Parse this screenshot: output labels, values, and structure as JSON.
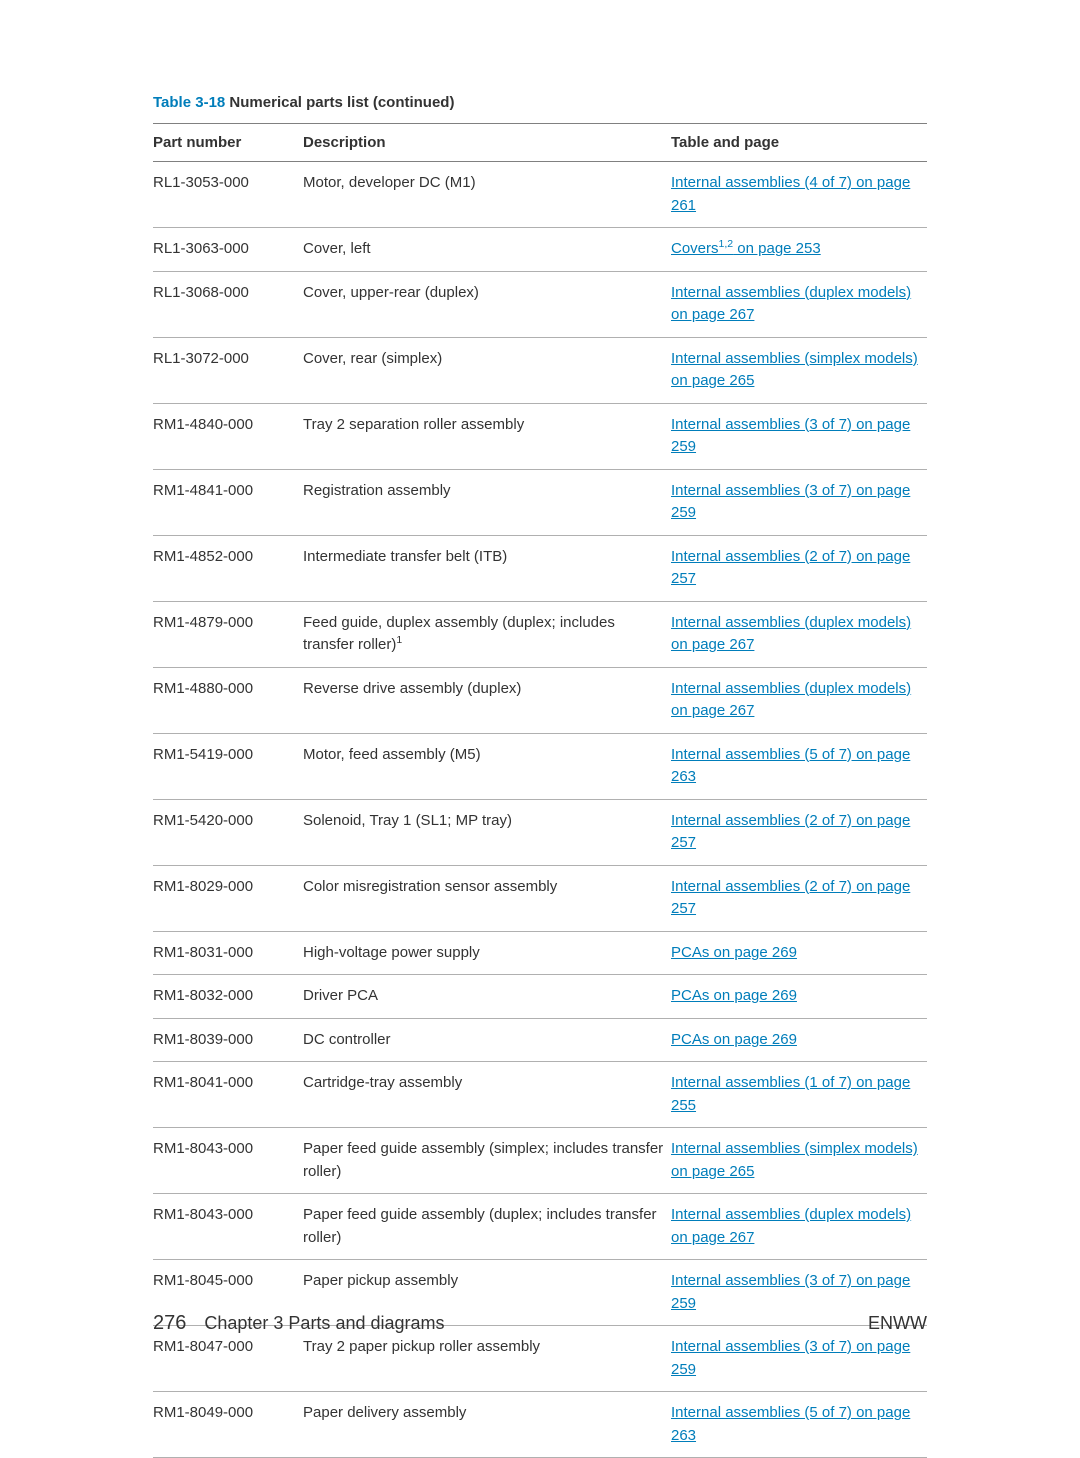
{
  "caption": {
    "label": "Table 3-18",
    "title": " Numerical parts list (continued)"
  },
  "columns": {
    "part": "Part number",
    "desc": "Description",
    "ref": "Table and page"
  },
  "rows": [
    {
      "part": "RL1-3053-000",
      "desc": "Motor, developer DC (M1)",
      "ref": "Internal assemblies (4 of 7) on page 261"
    },
    {
      "part": "RL1-3063-000",
      "desc": "Cover, left",
      "ref_html": "Covers<sup>1,2</sup> on page 253"
    },
    {
      "part": "RL1-3068-000",
      "desc": "Cover, upper-rear (duplex)",
      "ref": "Internal assemblies (duplex models) on page 267"
    },
    {
      "part": "RL1-3072-000",
      "desc": "Cover, rear (simplex)",
      "ref": "Internal assemblies (simplex models) on page 265"
    },
    {
      "part": "RM1-4840-000",
      "desc": "Tray 2 separation roller assembly",
      "ref": "Internal assemblies (3 of 7) on page 259"
    },
    {
      "part": "RM1-4841-000",
      "desc": "Registration assembly",
      "ref": "Internal assemblies (3 of 7) on page 259"
    },
    {
      "part": "RM1-4852-000",
      "desc": "Intermediate transfer belt (ITB)",
      "ref": "Internal assemblies (2 of 7) on page 257"
    },
    {
      "part": "RM1-4879-000",
      "desc_html": "Feed guide, duplex assembly (duplex; includes transfer roller)<sup>1</sup>",
      "ref": "Internal assemblies (duplex models) on page 267"
    },
    {
      "part": "RM1-4880-000",
      "desc": "Reverse drive assembly (duplex)",
      "ref": "Internal assemblies (duplex models) on page 267"
    },
    {
      "part": "RM1-5419-000",
      "desc": "Motor, feed assembly (M5)",
      "ref": "Internal assemblies (5 of 7) on page 263"
    },
    {
      "part": "RM1-5420-000",
      "desc": "Solenoid, Tray 1 (SL1; MP tray)",
      "ref": "Internal assemblies (2 of 7) on page 257"
    },
    {
      "part": "RM1-8029-000",
      "desc": "Color misregistration sensor assembly",
      "ref": "Internal assemblies (2 of 7) on page 257"
    },
    {
      "part": "RM1-8031-000",
      "desc": "High-voltage power supply",
      "ref": "PCAs on page 269"
    },
    {
      "part": "RM1-8032-000",
      "desc": "Driver PCA",
      "ref": "PCAs on page 269"
    },
    {
      "part": "RM1-8039-000",
      "desc": "DC controller",
      "ref": "PCAs on page 269"
    },
    {
      "part": "RM1-8041-000",
      "desc": "Cartridge-tray assembly",
      "ref": "Internal assemblies (1 of 7) on page 255"
    },
    {
      "part": "RM1-8043-000",
      "desc": "Paper feed guide assembly (simplex; includes transfer roller)",
      "ref": "Internal assemblies (simplex models) on page 265"
    },
    {
      "part": "RM1-8043-000",
      "desc": "Paper feed guide assembly (duplex; includes transfer roller)",
      "ref": "Internal assemblies (duplex models) on page 267"
    },
    {
      "part": "RM1-8045-000",
      "desc": "Paper pickup assembly",
      "ref": "Internal assemblies (3 of 7) on page 259"
    },
    {
      "part": "RM1-8047-000",
      "desc": "Tray 2 paper pickup roller assembly",
      "ref": "Internal assemblies (3 of 7) on page 259"
    },
    {
      "part": "RM1-8049-000",
      "desc": "Paper delivery assembly",
      "ref": "Internal assemblies (5 of 7) on page 263"
    }
  ],
  "footer": {
    "page_number": "276",
    "chapter": "Chapter 3   Parts and diagrams",
    "right": "ENWW"
  },
  "colors": {
    "link": "#007dba",
    "text": "#333333",
    "rule": "#b0b0b0",
    "head_rule": "#808080"
  }
}
